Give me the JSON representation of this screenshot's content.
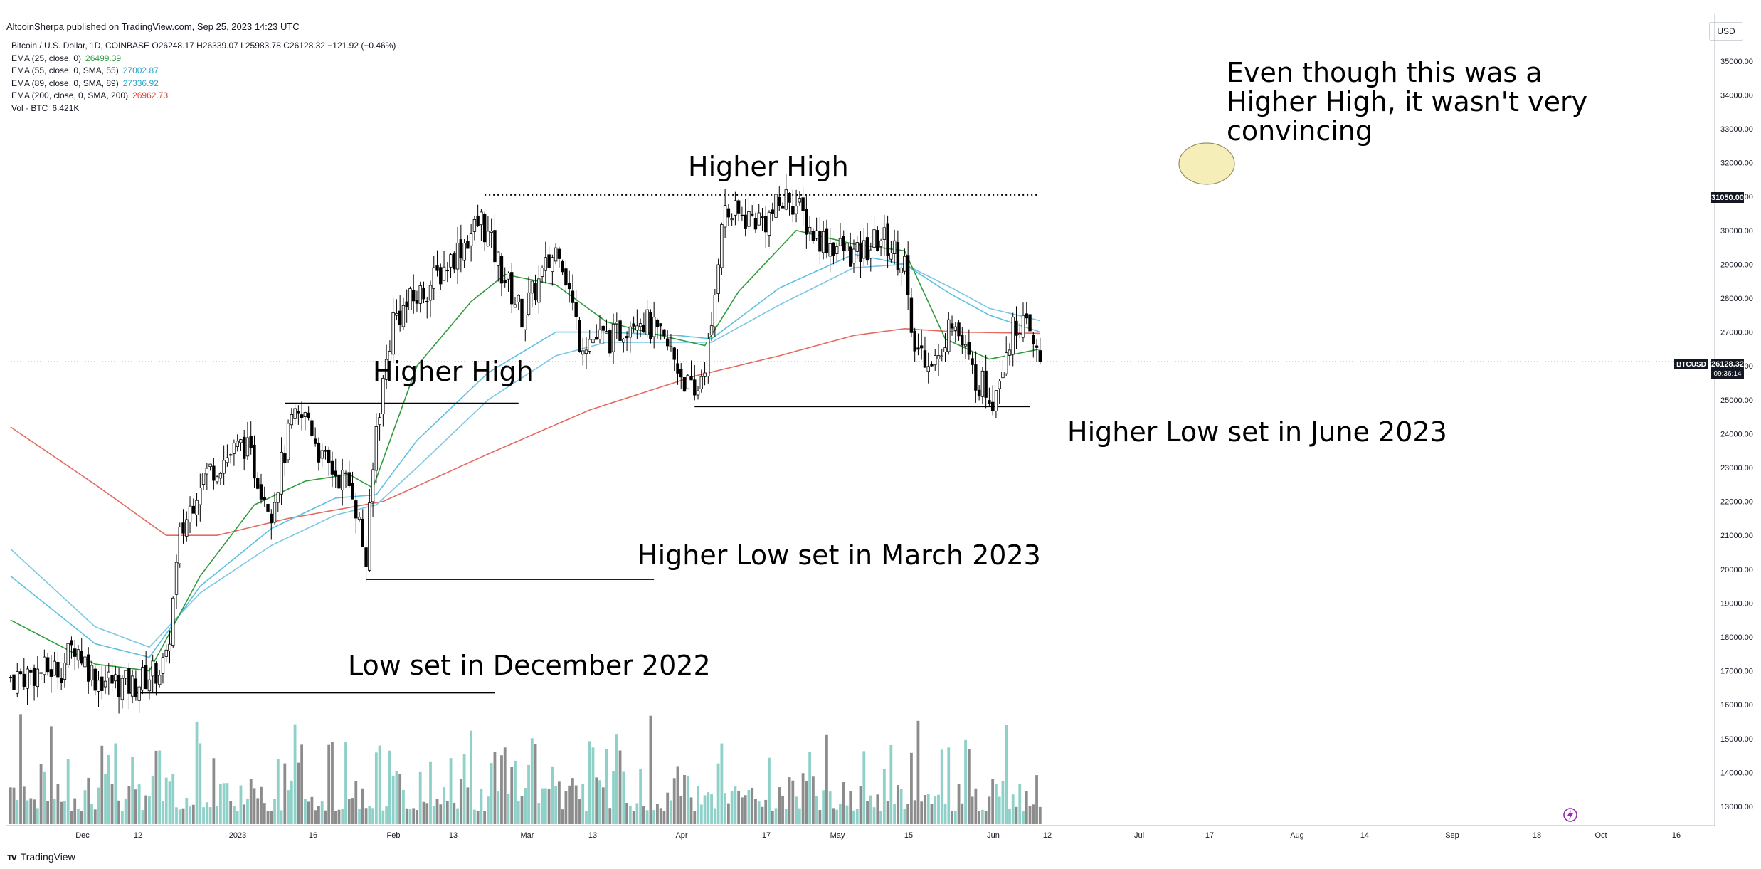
{
  "header": {
    "published_line": "AltcoinSherpa published on TradingView.com, Sep 25, 2023 14:23 UTC"
  },
  "legend": {
    "symbol_line": "Bitcoin / U.S. Dollar, 1D, COINBASE",
    "ohlc": "O26248.17  H26339.07  L25983.78  C26128.32  −121.92 (−0.46%)",
    "items": [
      {
        "label": "EMA (25, close, 0)",
        "value": "26499.39",
        "color": "#2e9c3a"
      },
      {
        "label": "EMA (55, close, 0, SMA, 55)",
        "value": "27002.87",
        "color": "#29a6c9"
      },
      {
        "label": "EMA (89, close, 0, SMA, 89)",
        "value": "27336.92",
        "color": "#29a6c9"
      },
      {
        "label": "EMA (200, close, 0, SMA, 200)",
        "value": "26962.73",
        "color": "#e0443c"
      },
      {
        "label": "Vol · BTC",
        "value": "6.421K",
        "color": "#131722"
      }
    ]
  },
  "currency_button": "USD",
  "annotations": {
    "higher_high_1": "Higher High",
    "higher_high_2": "Higher High",
    "not_convincing": "Even though this was a\nHigher High, it wasn't very\nconvincing",
    "higher_low_june": "Higher Low set in June 2023",
    "higher_low_march": "Higher Low set in March 2023",
    "low_december": "Low set in December 2022"
  },
  "price_axis_tags": {
    "level": "31050.00",
    "symbol": "BTCUSD",
    "last_price": "26128.32",
    "countdown": "09:36:14"
  },
  "footer": {
    "brand": "TradingView",
    "logo_icon": "tradingview-logo-icon"
  },
  "colors": {
    "up_candle": "#ffffff",
    "down_candle": "#000000",
    "vol_up": "#8fd1c9",
    "vol_down": "#8c8c8c",
    "ema25": "#2e9c3a",
    "ema55": "#5cc0de",
    "ema89": "#7cc7e6",
    "ema200": "#e46a5f"
  },
  "chart_data": {
    "type": "candlestick",
    "title": "Bitcoin / U.S. Dollar, 1D, COINBASE",
    "ylim": [
      12500,
      35500
    ],
    "yticks": [
      13000,
      14000,
      15000,
      16000,
      17000,
      18000,
      19000,
      20000,
      21000,
      22000,
      23000,
      24000,
      25000,
      26000,
      27000,
      28000,
      29000,
      30000,
      31000,
      32000,
      33000,
      34000,
      35000
    ],
    "xticks": [
      "Dec",
      "12",
      "2023",
      "16",
      "Feb",
      "13",
      "Mar",
      "13",
      "Apr",
      "17",
      "May",
      "15",
      "Jun",
      "12",
      "Jul",
      "17",
      "Aug",
      "14",
      "Sep",
      "18",
      "Oct",
      "16"
    ],
    "price_path": {
      "dates": [
        "2022-11-25",
        "2022-12-10",
        "2022-12-14",
        "2022-12-20",
        "2022-12-31",
        "2023-01-10",
        "2023-01-14",
        "2023-01-20",
        "2023-01-25",
        "2023-02-02",
        "2023-02-10",
        "2023-02-16",
        "2023-02-21",
        "2023-02-25",
        "2023-03-06",
        "2023-03-10",
        "2023-03-13",
        "2023-03-18",
        "2023-03-29",
        "2023-04-13",
        "2023-04-19",
        "2023-04-25",
        "2023-05-06",
        "2023-05-12",
        "2023-05-22",
        "2023-05-29",
        "2023-06-08",
        "2023-06-15",
        "2023-06-20",
        "2023-06-23",
        "2023-07-06",
        "2023-07-13",
        "2023-07-20",
        "2023-08-02",
        "2023-08-09",
        "2023-08-16",
        "2023-08-18",
        "2023-08-27",
        "2023-08-29",
        "2023-09-05",
        "2023-09-11",
        "2023-09-15",
        "2023-09-19",
        "2023-09-25"
      ],
      "closes": [
        16800,
        17100,
        17800,
        16800,
        16550,
        17200,
        20900,
        22700,
        23100,
        23700,
        21800,
        24300,
        24500,
        23200,
        22400,
        20200,
        24200,
        27400,
        28400,
        30300,
        28800,
        27500,
        29600,
        26800,
        26800,
        27600,
        26400,
        25000,
        26900,
        30500,
        30300,
        31050,
        29900,
        29200,
        29800,
        29100,
        26600,
        26100,
        27700,
        25800,
        25100,
        26600,
        27400,
        26128
      ]
    },
    "ema25": {
      "dates": [
        "2022-11-25",
        "2022-12-20",
        "2023-01-05",
        "2023-01-20",
        "2023-02-05",
        "2023-02-20",
        "2023-03-05",
        "2023-03-12",
        "2023-03-25",
        "2023-04-10",
        "2023-04-20",
        "2023-05-05",
        "2023-05-20",
        "2023-06-05",
        "2023-06-18",
        "2023-06-28",
        "2023-07-15",
        "2023-08-01",
        "2023-08-16",
        "2023-08-28",
        "2023-09-10",
        "2023-09-25"
      ],
      "values": [
        18500,
        17200,
        17000,
        19800,
        21900,
        22600,
        22800,
        22400,
        26000,
        27900,
        28700,
        28400,
        27300,
        26900,
        26600,
        28200,
        30000,
        29600,
        29400,
        26800,
        26200,
        26499
      ]
    },
    "ema55": {
      "dates": [
        "2022-11-25",
        "2022-12-20",
        "2023-01-05",
        "2023-01-20",
        "2023-02-10",
        "2023-03-01",
        "2023-03-13",
        "2023-03-25",
        "2023-04-15",
        "2023-05-05",
        "2023-05-20",
        "2023-06-10",
        "2023-06-20",
        "2023-07-10",
        "2023-08-01",
        "2023-08-16",
        "2023-08-30",
        "2023-09-10",
        "2023-09-25"
      ],
      "values": [
        19800,
        17800,
        17400,
        19500,
        21200,
        22100,
        22200,
        23800,
        25800,
        27000,
        27000,
        26900,
        26800,
        28300,
        29300,
        29000,
        28100,
        27500,
        27003
      ]
    },
    "ema89": {
      "dates": [
        "2022-11-25",
        "2022-12-20",
        "2023-01-05",
        "2023-01-20",
        "2023-02-10",
        "2023-03-01",
        "2023-03-13",
        "2023-03-25",
        "2023-04-15",
        "2023-05-05",
        "2023-05-20",
        "2023-06-10",
        "2023-06-20",
        "2023-07-10",
        "2023-08-01",
        "2023-08-16",
        "2023-08-30",
        "2023-09-10",
        "2023-09-25"
      ],
      "values": [
        20600,
        18300,
        17700,
        19300,
        20700,
        21600,
        21900,
        23000,
        25000,
        26300,
        26700,
        26700,
        26700,
        27800,
        28900,
        29000,
        28300,
        27700,
        27337
      ]
    },
    "ema200": {
      "dates": [
        "2022-11-25",
        "2022-12-20",
        "2023-01-10",
        "2023-01-25",
        "2023-02-15",
        "2023-03-15",
        "2023-04-15",
        "2023-05-15",
        "2023-06-15",
        "2023-07-10",
        "2023-08-01",
        "2023-08-16",
        "2023-09-01",
        "2023-09-25"
      ],
      "values": [
        24200,
        22500,
        21000,
        21000,
        21500,
        22000,
        23400,
        24700,
        25700,
        26300,
        26900,
        27100,
        27000,
        26963
      ]
    },
    "levels": [
      {
        "price": 31050,
        "from": "2023-04-14",
        "to": "2023-09-25",
        "style": "dotted"
      },
      {
        "price": 24900,
        "from": "2023-02-14",
        "to": "2023-04-24",
        "style": "solid"
      },
      {
        "price": 24800,
        "from": "2023-06-15",
        "to": "2023-09-22",
        "style": "solid"
      },
      {
        "price": 19700,
        "from": "2023-03-10",
        "to": "2023-06-03",
        "style": "solid"
      },
      {
        "price": 16350,
        "from": "2022-12-30",
        "to": "2023-04-17",
        "style": "solid"
      }
    ],
    "last_price": 26128.32
  }
}
